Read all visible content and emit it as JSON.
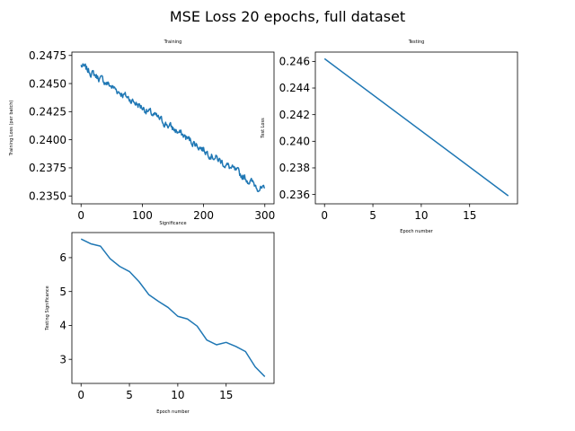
{
  "figure": {
    "suptitle": "MSE Loss 20 epochs, full dataset",
    "line_color": "#1f77b4"
  },
  "chart_data": [
    {
      "type": "line",
      "title": "Training",
      "xlabel": "",
      "ylabel": "Training Loss (per batch)",
      "xlim": [
        -15,
        315
      ],
      "ylim": [
        0.2343,
        0.2478
      ],
      "xticks": [
        0,
        100,
        200,
        300
      ],
      "xtick_labels": [
        "0",
        "100",
        "200",
        "300"
      ],
      "yticks": [
        0.235,
        0.2375,
        0.24,
        0.2425,
        0.245,
        0.2475
      ],
      "ytick_labels": [
        "0.2350",
        "0.2375",
        "0.2400",
        "0.2425",
        "0.2450",
        "0.2475"
      ],
      "trend": {
        "x_start": 0,
        "y_start": 0.2466,
        "x_end": 300,
        "y_end": 0.2354,
        "n_points": 301,
        "noise": 0.00045
      }
    },
    {
      "type": "line",
      "title": "Testing",
      "xlabel": "Epoch number",
      "ylabel": "Test Loss",
      "xlim": [
        -0.95,
        19.95
      ],
      "ylim": [
        0.2353,
        0.2467
      ],
      "xticks": [
        0,
        5,
        10,
        15
      ],
      "xtick_labels": [
        "0",
        "5",
        "10",
        "15"
      ],
      "yticks": [
        0.236,
        0.238,
        0.24,
        0.242,
        0.244,
        0.246
      ],
      "ytick_labels": [
        "0.236",
        "0.238",
        "0.240",
        "0.242",
        "0.244",
        "0.246"
      ],
      "x": [
        0,
        19
      ],
      "y": [
        0.2462,
        0.2359
      ]
    },
    {
      "type": "line",
      "title": "Significance",
      "xlabel": "Epoch number",
      "ylabel": "Testing Significance",
      "xlim": [
        -0.95,
        19.95
      ],
      "ylim": [
        2.29,
        6.74
      ],
      "xticks": [
        0,
        5,
        10,
        15
      ],
      "xtick_labels": [
        "0",
        "5",
        "10",
        "15"
      ],
      "yticks": [
        3,
        4,
        5,
        6
      ],
      "ytick_labels": [
        "3",
        "4",
        "5",
        "6"
      ],
      "x": [
        0,
        1,
        2,
        3,
        4,
        5,
        6,
        7,
        8,
        9,
        10,
        11,
        12,
        13,
        14,
        15,
        16,
        17,
        18,
        19
      ],
      "y": [
        6.55,
        6.41,
        6.34,
        5.97,
        5.74,
        5.59,
        5.29,
        4.91,
        4.71,
        4.53,
        4.27,
        4.19,
        3.98,
        3.57,
        3.43,
        3.5,
        3.38,
        3.23,
        2.78,
        2.49
      ]
    }
  ]
}
